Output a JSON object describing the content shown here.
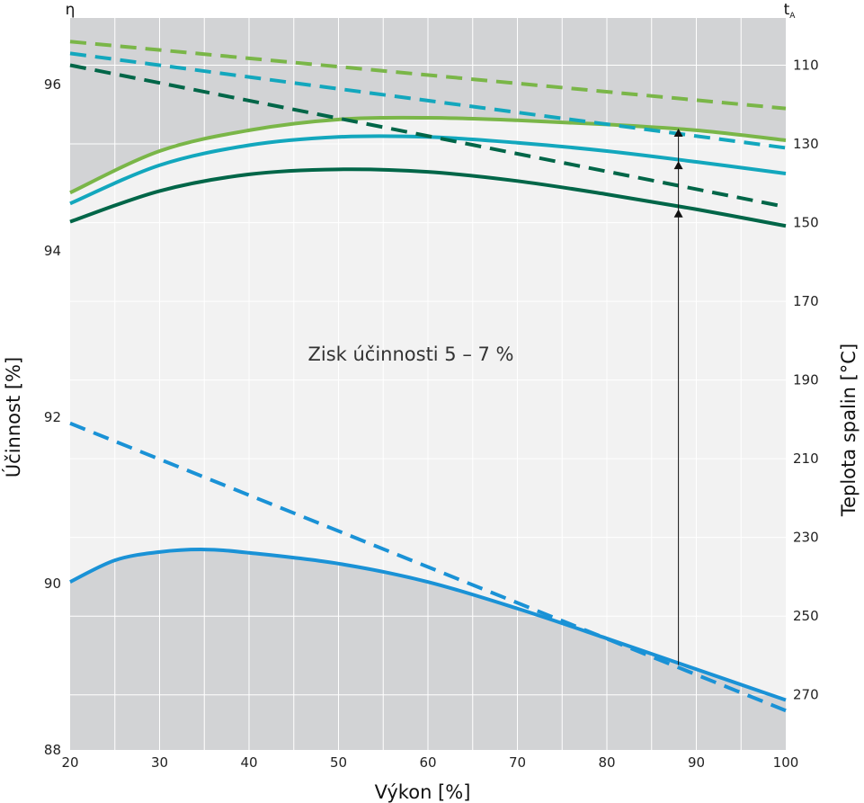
{
  "chart_data": {
    "type": "line",
    "title": "",
    "xlabel": "Výkon [%]",
    "ylabel": "Účinnost [%]",
    "y2label": "Teplota spalin [°C]",
    "left_corner_label": "η",
    "right_corner_label_main": "t",
    "right_corner_label_sub": "A",
    "annotation": "Zisk účinnosti 5 – 7 %",
    "xlim": [
      20,
      100
    ],
    "ylim": [
      88,
      96.8
    ],
    "y2lim": [
      284,
      98
    ],
    "x_ticks": [
      20,
      30,
      40,
      50,
      60,
      70,
      80,
      90,
      100
    ],
    "y_ticks": [
      88,
      90,
      92,
      94,
      96
    ],
    "y2_ticks": [
      110,
      130,
      150,
      170,
      190,
      210,
      230,
      250,
      270
    ],
    "grid": true,
    "series": [
      {
        "axis": "efficiency",
        "style": "solid",
        "color": "#7ab648",
        "points": [
          [
            20,
            94.7
          ],
          [
            30,
            95.2
          ],
          [
            40,
            95.45
          ],
          [
            50,
            95.58
          ],
          [
            60,
            95.6
          ],
          [
            70,
            95.57
          ],
          [
            80,
            95.52
          ],
          [
            90,
            95.45
          ],
          [
            100,
            95.33
          ]
        ]
      },
      {
        "axis": "efficiency",
        "style": "solid",
        "color": "#13a7bd",
        "points": [
          [
            20,
            94.57
          ],
          [
            30,
            95.03
          ],
          [
            40,
            95.27
          ],
          [
            50,
            95.37
          ],
          [
            60,
            95.37
          ],
          [
            70,
            95.3
          ],
          [
            80,
            95.2
          ],
          [
            90,
            95.07
          ],
          [
            100,
            94.93
          ]
        ]
      },
      {
        "axis": "efficiency",
        "style": "solid",
        "color": "#006648",
        "points": [
          [
            20,
            94.35
          ],
          [
            30,
            94.72
          ],
          [
            40,
            94.92
          ],
          [
            50,
            94.98
          ],
          [
            60,
            94.95
          ],
          [
            70,
            94.84
          ],
          [
            80,
            94.68
          ],
          [
            90,
            94.5
          ],
          [
            100,
            94.3
          ]
        ]
      },
      {
        "axis": "efficiency",
        "style": "solid",
        "color": "#1a92d6",
        "points": [
          [
            20,
            90.02
          ],
          [
            25,
            90.28
          ],
          [
            30,
            90.38
          ],
          [
            35,
            90.41
          ],
          [
            40,
            90.37
          ],
          [
            50,
            90.24
          ],
          [
            60,
            90.02
          ],
          [
            70,
            89.7
          ],
          [
            80,
            89.34
          ],
          [
            90,
            88.97
          ],
          [
            100,
            88.6
          ]
        ]
      },
      {
        "axis": "flue_temperature",
        "style": "dashed",
        "color": "#7ab648",
        "points": [
          [
            20,
            104
          ],
          [
            100,
            121
          ]
        ]
      },
      {
        "axis": "flue_temperature",
        "style": "dashed",
        "color": "#13a7bd",
        "points": [
          [
            20,
            107
          ],
          [
            100,
            131
          ]
        ]
      },
      {
        "axis": "flue_temperature",
        "style": "dashed",
        "color": "#006648",
        "points": [
          [
            20,
            110
          ],
          [
            100,
            146
          ]
        ]
      },
      {
        "axis": "flue_temperature",
        "style": "dashed",
        "color": "#1a92d6",
        "points": [
          [
            20,
            201
          ],
          [
            100,
            274
          ]
        ]
      }
    ],
    "gain_arrow": {
      "x": 88,
      "from_efficiency": 89.02,
      "to_efficiencies": [
        94.5,
        95.08,
        95.47
      ],
      "color": "#111111"
    },
    "colors": {
      "shade_dark": "#d2d3d5",
      "shade_light": "#f2f2f2",
      "grid": "#ffffff"
    }
  }
}
